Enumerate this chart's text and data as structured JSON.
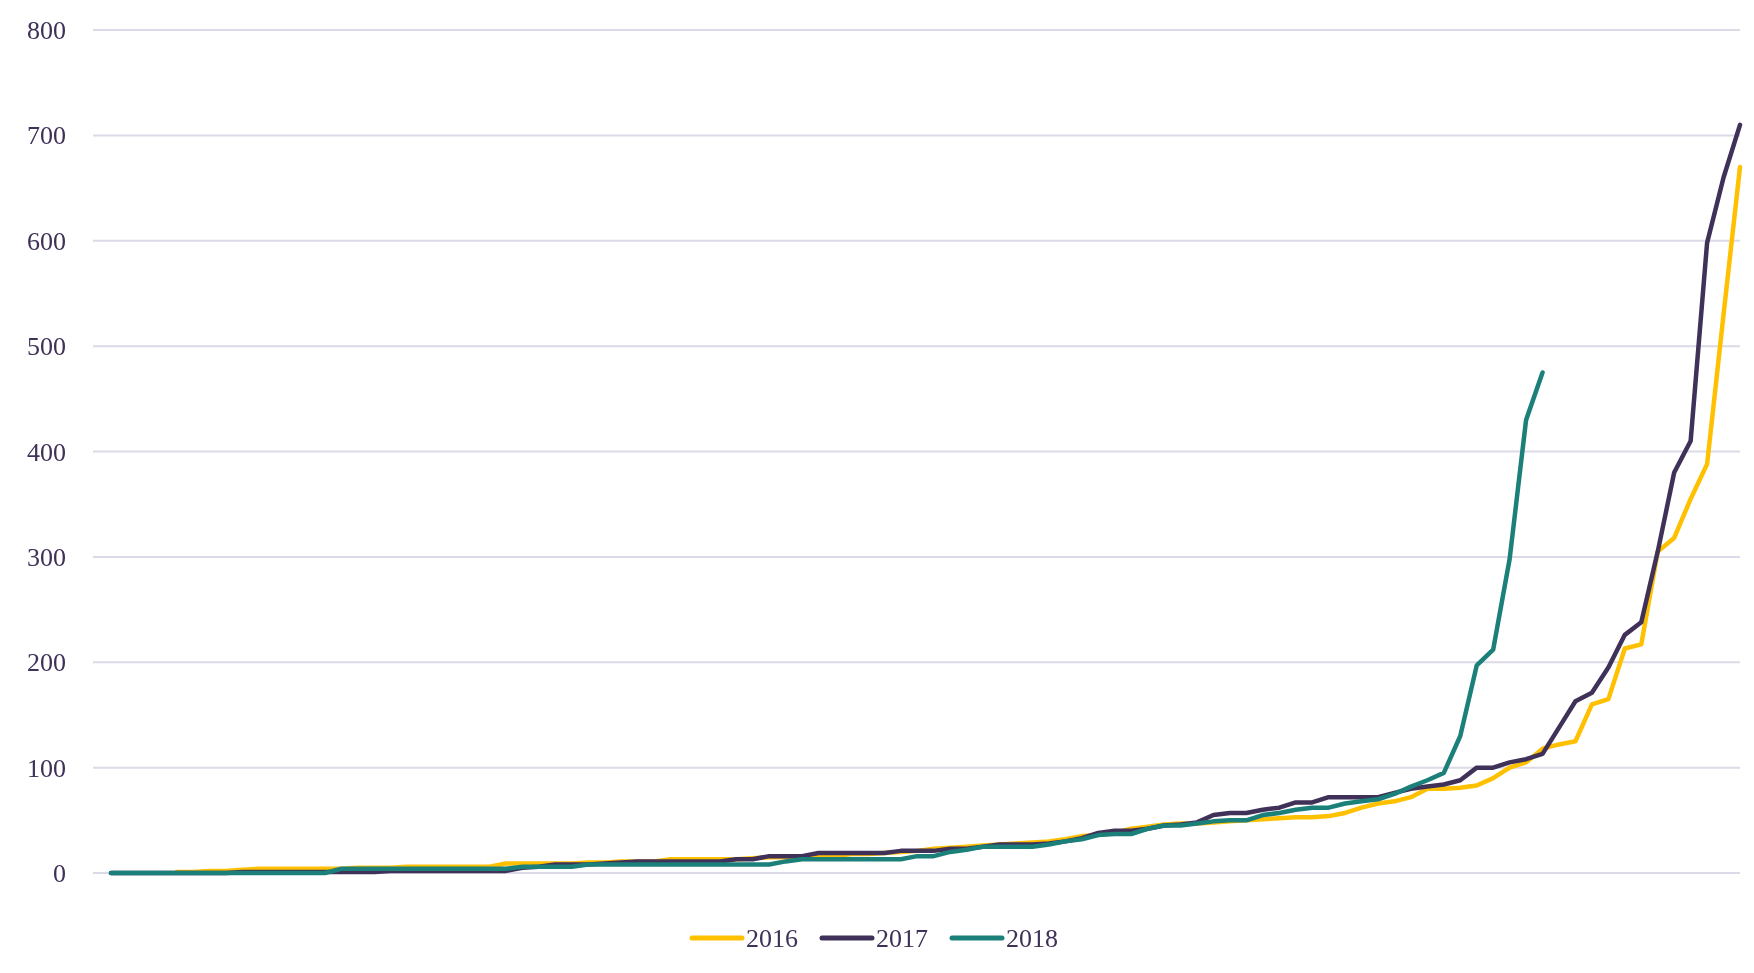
{
  "chart_data": {
    "type": "line",
    "categories": [
      null,
      null,
      null,
      null,
      null,
      null,
      null,
      null,
      null,
      null,
      null,
      null,
      null,
      null,
      null,
      null,
      null,
      null,
      null,
      null,
      null,
      null,
      null,
      null,
      null,
      null,
      null,
      null,
      null,
      null,
      null,
      null,
      null,
      null,
      null,
      null,
      null,
      null,
      null,
      null,
      null,
      null,
      null,
      null,
      null,
      null,
      null,
      null,
      null,
      null,
      null,
      null,
      null,
      null,
      null,
      null,
      null,
      null,
      null,
      null,
      null,
      null,
      null,
      null,
      null,
      null,
      null,
      null,
      null,
      null,
      null,
      null,
      null,
      null,
      null,
      null,
      null,
      null,
      null,
      null,
      null,
      null,
      null,
      null,
      null,
      null,
      null,
      null,
      null,
      null,
      null,
      null,
      null,
      null,
      null,
      null,
      null,
      null,
      null,
      null
    ],
    "series": [
      {
        "name": "2016",
        "color": "#ffc000",
        "values": [
          null,
          null,
          null,
          null,
          1,
          1,
          2,
          2,
          3,
          4,
          4,
          4,
          4,
          4,
          4,
          5,
          5,
          5,
          6,
          6,
          6,
          6,
          6,
          6,
          9,
          9,
          9,
          9,
          9,
          10,
          10,
          11,
          11,
          11,
          13,
          13,
          13,
          13,
          13,
          14,
          15,
          15,
          16,
          16,
          16,
          18,
          18,
          19,
          20,
          21,
          23,
          24,
          25,
          26,
          27,
          28,
          29,
          30,
          32,
          35,
          36,
          38,
          42,
          44,
          46,
          47,
          47,
          48,
          49,
          50,
          51,
          52,
          53,
          53,
          54,
          57,
          62,
          66,
          68,
          72,
          80,
          80,
          81,
          83,
          90,
          100,
          105,
          118,
          122,
          125,
          160,
          165,
          213,
          217,
          305,
          318,
          355,
          388,
          530,
          670
        ]
      },
      {
        "name": "2017",
        "color": "#3f3158",
        "values": [
          0,
          0,
          0,
          0,
          0,
          0,
          0,
          0,
          1,
          1,
          1,
          1,
          1,
          1,
          1,
          1,
          1,
          2,
          2,
          2,
          2,
          2,
          2,
          2,
          2,
          5,
          6,
          8,
          8,
          8,
          9,
          10,
          11,
          11,
          11,
          11,
          11,
          11,
          13,
          13,
          16,
          16,
          16,
          19,
          19,
          19,
          19,
          19,
          21,
          21,
          21,
          23,
          23,
          25,
          27,
          27,
          27,
          28,
          30,
          33,
          38,
          40,
          40,
          42,
          45,
          46,
          48,
          55,
          57,
          57,
          60,
          62,
          67,
          67,
          72,
          72,
          72,
          72,
          76,
          80,
          82,
          84,
          88,
          100,
          100,
          105,
          108,
          113,
          138,
          163,
          171,
          195,
          226,
          238,
          305,
          380,
          410,
          598,
          660,
          710
        ]
      },
      {
        "name": "2018",
        "color": "#1b7f7a",
        "values": [
          0,
          0,
          0,
          0,
          0,
          0,
          0,
          0,
          0,
          0,
          0,
          0,
          0,
          0,
          4,
          4,
          4,
          4,
          4,
          4,
          4,
          4,
          4,
          4,
          4,
          6,
          6,
          6,
          6,
          8,
          8,
          8,
          8,
          8,
          8,
          8,
          8,
          8,
          8,
          8,
          8,
          11,
          13,
          13,
          13,
          13,
          13,
          13,
          13,
          16,
          16,
          20,
          22,
          25,
          25,
          25,
          25,
          27,
          30,
          32,
          36,
          37,
          37,
          42,
          45,
          45,
          47,
          49,
          50,
          50,
          55,
          57,
          60,
          62,
          62,
          66,
          68,
          70,
          75,
          82,
          88,
          95,
          130,
          197,
          212,
          298,
          430,
          475,
          null,
          null,
          null,
          null,
          null,
          null,
          null,
          null,
          null,
          null,
          null,
          null
        ]
      }
    ],
    "ylim": [
      0,
      800
    ],
    "yticks": [
      0,
      100,
      200,
      300,
      400,
      500,
      600,
      700,
      800
    ],
    "grid": "y",
    "legend": "bottom",
    "tick_labels": "y",
    "marker": "none",
    "line_style": "solid"
  }
}
